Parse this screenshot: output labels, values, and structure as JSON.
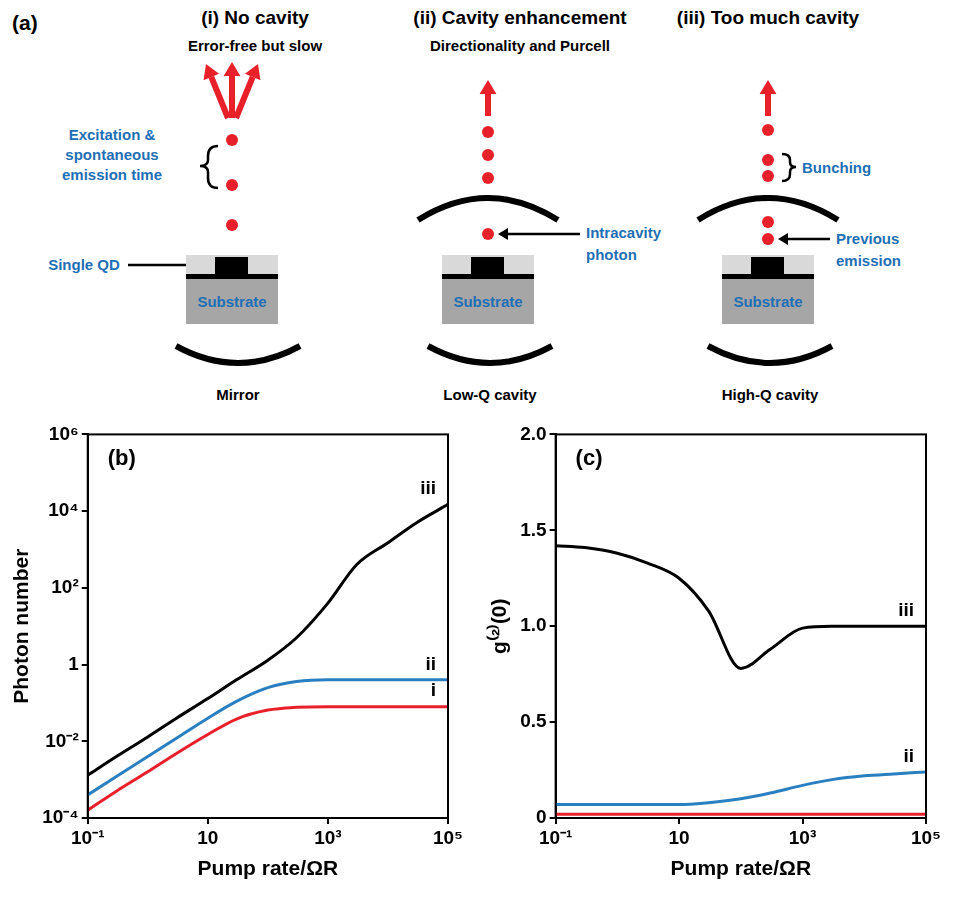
{
  "diagram": {
    "label": "(a)",
    "panels": [
      {
        "title": "(i) No cavity",
        "subtitle": "Error-free but slow",
        "annotations": [
          {
            "text": [
              "Excitation &",
              "spontaneous",
              "emission time"
            ]
          },
          {
            "text": [
              "Single QD"
            ]
          }
        ],
        "substrate": "Substrate",
        "bottom": "Mirror"
      },
      {
        "title": "(ii) Cavity enhancement",
        "subtitle": "Directionality and Purcell",
        "annotations": [
          {
            "text": [
              "Intracavity",
              "photon"
            ]
          }
        ],
        "substrate": "Substrate",
        "bottom": "Low-Q cavity"
      },
      {
        "title": "(iii) Too much cavity",
        "annotations": [
          {
            "text": [
              "Bunching"
            ]
          },
          {
            "text": [
              "Previous",
              "emission"
            ]
          }
        ],
        "substrate": "Substrate",
        "bottom": "High-Q cavity"
      }
    ]
  },
  "chart_data": [
    {
      "type": "line",
      "title": "(b)",
      "x_label": "Pump rate/ΩR",
      "y_label": "Photon number",
      "log": true,
      "grid": false,
      "x": [
        0.1,
        0.3,
        1,
        3,
        10,
        30,
        100,
        300,
        1000,
        3000,
        10000,
        30000,
        100000
      ],
      "xlim": [
        0.1,
        100000
      ],
      "xticks": [
        {
          "value": 0.1,
          "label": "10⁻¹"
        },
        10,
        {
          "value": 1000,
          "label": "10³"
        },
        {
          "value": 100000,
          "label": "10⁵"
        }
      ],
      "ylim": [
        0.0001,
        1000000
      ],
      "yticks": [
        {
          "value": 0.0001,
          "label": "10⁻⁴"
        },
        {
          "value": 0.01,
          "label": "10⁻²"
        },
        1,
        {
          "value": 100,
          "label": "10²"
        },
        {
          "value": 10000,
          "label": "10⁴"
        },
        {
          "value": 1000000,
          "label": "10⁶"
        }
      ],
      "series": [
        {
          "name": "iii",
          "color": "#000000",
          "values": [
            0.0013,
            0.004,
            0.013,
            0.04,
            0.13,
            0.4,
            1.3,
            5,
            40,
            400,
            1500,
            5000,
            15000
          ]
        },
        {
          "name": "ii",
          "color": "#2a7fc1",
          "values": [
            0.0004,
            0.0012,
            0.004,
            0.012,
            0.04,
            0.11,
            0.25,
            0.36,
            0.4,
            0.4,
            0.4,
            0.4,
            0.4
          ]
        },
        {
          "name": "i",
          "color": "#e8202a",
          "values": [
            0.00016,
            0.0005,
            0.0016,
            0.0048,
            0.015,
            0.038,
            0.065,
            0.077,
            0.08,
            0.08,
            0.08,
            0.08,
            0.08
          ]
        }
      ]
    },
    {
      "type": "line",
      "title": "(c)",
      "x_label": "Pump rate/ΩR",
      "y_label": "g⁽²⁾(0)",
      "log": "x",
      "grid": false,
      "x": [
        0.1,
        0.3,
        1,
        3,
        10,
        30,
        100,
        300,
        1000,
        3000,
        10000,
        30000,
        100000
      ],
      "xlim": [
        0.1,
        100000
      ],
      "xticks": [
        {
          "value": 0.1,
          "label": "10⁻¹"
        },
        10,
        {
          "value": 1000,
          "label": "10³"
        },
        {
          "value": 100000,
          "label": "10⁵"
        }
      ],
      "ylim": [
        0,
        2
      ],
      "yticks": [
        0,
        0.5,
        {
          "value": 1,
          "label": "1.0"
        },
        1.5,
        {
          "value": 2,
          "label": "2.0"
        }
      ],
      "series": [
        {
          "name": "iii",
          "color": "#000000",
          "values": [
            1.42,
            1.41,
            1.38,
            1.33,
            1.25,
            1.08,
            0.78,
            0.88,
            0.99,
            1.0,
            1.0,
            1.0,
            1.0
          ]
        },
        {
          "name": "ii",
          "color": "#2a7fc1",
          "values": [
            0.07,
            0.07,
            0.07,
            0.07,
            0.07,
            0.08,
            0.1,
            0.13,
            0.17,
            0.2,
            0.22,
            0.23,
            0.24
          ]
        },
        {
          "color": "#e8202a",
          "values": [
            0.02,
            0.02,
            0.02,
            0.02,
            0.02,
            0.02,
            0.02,
            0.02,
            0.02,
            0.02,
            0.02,
            0.02,
            0.02
          ]
        }
      ]
    }
  ]
}
